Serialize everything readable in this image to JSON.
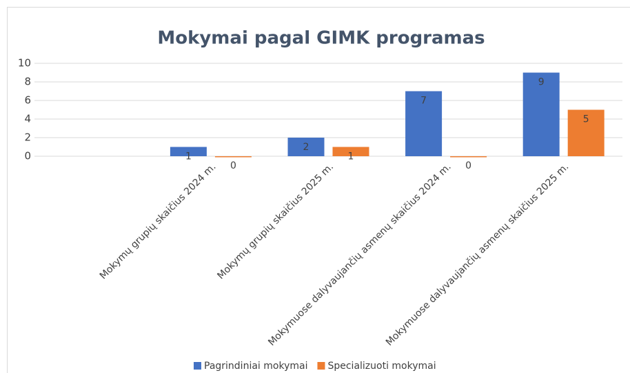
{
  "chart_data": {
    "type": "bar",
    "title": "Mokymai pagal GIMK programas",
    "categories": [
      null,
      "Mokymų grupių skaičius 2024 m.",
      "Mokymų grupių skaičius 2025 m.",
      "Mokymuose dalyvaujančių asmenų skaičius 2024 m.",
      "Mokymuose dalyvaujančių asmenų skaičius 2025 m."
    ],
    "series": [
      {
        "name": "Pagrindiniai mokymai",
        "color": "#4472c4",
        "values": [
          null,
          1,
          2,
          7,
          9
        ]
      },
      {
        "name": "Specializuoti mokymai",
        "color": "#ed7d31",
        "values": [
          null,
          0,
          1,
          0,
          5
        ]
      }
    ],
    "ylim": [
      0,
      10
    ],
    "yticks": [
      0,
      2,
      4,
      6,
      8,
      10
    ],
    "grid": true,
    "legend": "bottom"
  }
}
